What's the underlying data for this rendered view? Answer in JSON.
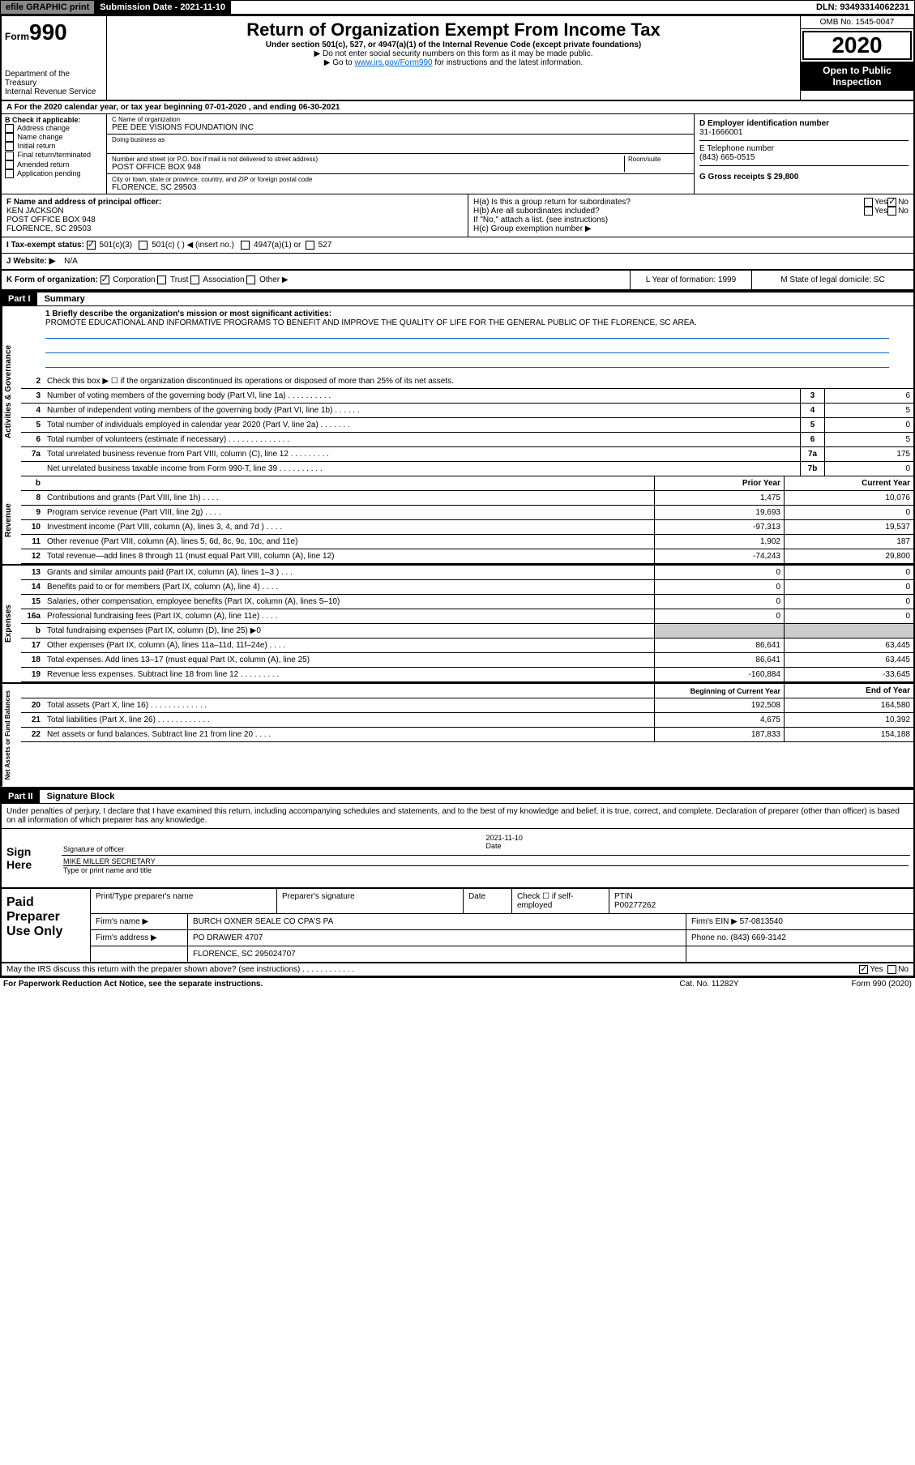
{
  "topbar": {
    "efile": "efile GRAPHIC print",
    "submission_label": "Submission Date - 2021-11-10",
    "dln": "DLN: 93493314062231"
  },
  "header": {
    "form_label": "Form",
    "form_number": "990",
    "title": "Return of Organization Exempt From Income Tax",
    "subtitle": "Under section 501(c), 527, or 4947(a)(1) of the Internal Revenue Code (except private foundations)",
    "note1": "▶ Do not enter social security numbers on this form as it may be made public.",
    "note2_pre": "▶ Go to ",
    "note2_link": "www.irs.gov/Form990",
    "note2_post": " for instructions and the latest information.",
    "dept1": "Department of the Treasury",
    "dept2": "Internal Revenue Service",
    "omb": "OMB No. 1545-0047",
    "year": "2020",
    "open_public": "Open to Public Inspection"
  },
  "period": "A For the 2020 calendar year, or tax year beginning 07-01-2020    , and ending 06-30-2021",
  "section_b": {
    "label": "B Check if applicable:",
    "opts": [
      "Address change",
      "Name change",
      "Initial return",
      "Final return/terminated",
      "Amended return",
      "Application pending"
    ]
  },
  "section_c": {
    "name_label": "C Name of organization",
    "name": "PEE DEE VISIONS FOUNDATION INC",
    "dba_label": "Doing business as",
    "addr_label": "Number and street (or P.O. box if mail is not delivered to street address)",
    "room_label": "Room/suite",
    "addr": "POST OFFICE BOX 948",
    "city_label": "City or town, state or province, country, and ZIP or foreign postal code",
    "city": "FLORENCE, SC  29503"
  },
  "section_d": {
    "ein_label": "D Employer identification number",
    "ein": "31-1666001",
    "phone_label": "E Telephone number",
    "phone": "(843) 665-0515",
    "gross_label": "G Gross receipts $ 29,800"
  },
  "section_f": {
    "label": "F  Name and address of principal officer:",
    "name": "KEN JACKSON",
    "addr1": "POST OFFICE BOX 948",
    "addr2": "FLORENCE, SC  29503"
  },
  "section_h": {
    "ha": "H(a)  Is this a group return for subordinates?",
    "hb": "H(b)  Are all subordinates included?",
    "hb_note": "If \"No,\" attach a list. (see instructions)",
    "hc": "H(c)  Group exemption number ▶",
    "yes": "Yes",
    "no": "No"
  },
  "tax_status": {
    "label": "I  Tax-exempt status:",
    "opt1": "501(c)(3)",
    "opt2": "501(c) (   ) ◀ (insert no.)",
    "opt3": "4947(a)(1) or",
    "opt4": "527"
  },
  "website": {
    "label": "J  Website: ▶",
    "value": "N/A"
  },
  "form_org": {
    "k_label": "K Form of organization:",
    "k_opts": [
      "Corporation",
      "Trust",
      "Association",
      "Other ▶"
    ],
    "l_label": "L Year of formation: 1999",
    "m_label": "M State of legal domicile: SC"
  },
  "part1": {
    "header": "Part I",
    "title": "Summary"
  },
  "mission": {
    "label": "1  Briefly describe the organization's mission or most significant activities:",
    "text": "PROMOTE EDUCATIONAL AND INFORMATIVE PROGRAMS TO BENEFIT AND IMPROVE THE QUALITY OF LIFE FOR THE GENERAL PUBLIC OF THE FLORENCE, SC AREA."
  },
  "gov_lines": [
    {
      "n": "2",
      "d": "Check this box ▶ ☐  if the organization discontinued its operations or disposed of more than 25% of its net assets.",
      "b": "",
      "v": ""
    },
    {
      "n": "3",
      "d": "Number of voting members of the governing body (Part VI, line 1a)   .    .    .    .    .    .    .    .    .    .",
      "b": "3",
      "v": "6"
    },
    {
      "n": "4",
      "d": "Number of independent voting members of the governing body (Part VI, line 1b)   .    .    .    .    .    .",
      "b": "4",
      "v": "5"
    },
    {
      "n": "5",
      "d": "Total number of individuals employed in calendar year 2020 (Part V, line 2a)   .    .    .    .    .    .    .",
      "b": "5",
      "v": "0"
    },
    {
      "n": "6",
      "d": "Total number of volunteers (estimate if necessary)    .    .    .    .    .    .    .    .    .    .    .    .    .    .",
      "b": "6",
      "v": "5"
    },
    {
      "n": "7a",
      "d": "Total unrelated business revenue from Part VIII, column (C), line 12   .    .    .    .    .    .    .    .    .",
      "b": "7a",
      "v": "175"
    },
    {
      "n": "",
      "d": "Net unrelated business taxable income from Form 990-T, line 39    .    .    .    .    .    .    .    .    .    .",
      "b": "7b",
      "v": "0"
    }
  ],
  "rev_header": {
    "b": "b",
    "py": "Prior Year",
    "cy": "Current Year"
  },
  "rev_lines": [
    {
      "n": "8",
      "d": "Contributions and grants (Part VIII, line 1h)    .    .    .    .",
      "py": "1,475",
      "cy": "10,076"
    },
    {
      "n": "9",
      "d": "Program service revenue (Part VIII, line 2g)    .    .    .    .",
      "py": "19,693",
      "cy": "0"
    },
    {
      "n": "10",
      "d": "Investment income (Part VIII, column (A), lines 3, 4, and 7d )    .    .    .    .",
      "py": "-97,313",
      "cy": "19,537"
    },
    {
      "n": "11",
      "d": "Other revenue (Part VIII, column (A), lines 5, 6d, 8c, 9c, 10c, and 11e)",
      "py": "1,902",
      "cy": "187"
    },
    {
      "n": "12",
      "d": "Total revenue—add lines 8 through 11 (must equal Part VIII, column (A), line 12)",
      "py": "-74,243",
      "cy": "29,800"
    }
  ],
  "exp_lines": [
    {
      "n": "13",
      "d": "Grants and similar amounts paid (Part IX, column (A), lines 1–3 )   .    .    .",
      "py": "0",
      "cy": "0"
    },
    {
      "n": "14",
      "d": "Benefits paid to or for members (Part IX, column (A), line 4)   .    .    .    .",
      "py": "0",
      "cy": "0"
    },
    {
      "n": "15",
      "d": "Salaries, other compensation, employee benefits (Part IX, column (A), lines 5–10)",
      "py": "0",
      "cy": "0"
    },
    {
      "n": "16a",
      "d": "Professional fundraising fees (Part IX, column (A), line 11e)    .    .    .    .",
      "py": "0",
      "cy": "0"
    },
    {
      "n": "b",
      "d": "Total fundraising expenses (Part IX, column (D), line 25) ▶0",
      "py": "",
      "cy": "",
      "gray": true
    },
    {
      "n": "17",
      "d": "Other expenses (Part IX, column (A), lines 11a–11d, 11f–24e)    .    .    .    .",
      "py": "86,641",
      "cy": "63,445"
    },
    {
      "n": "18",
      "d": "Total expenses. Add lines 13–17 (must equal Part IX, column (A), line 25)",
      "py": "86,641",
      "cy": "63,445"
    },
    {
      "n": "19",
      "d": "Revenue less expenses. Subtract line 18 from line 12   .    .    .    .    .    .    .    .    .",
      "py": "-160,884",
      "cy": "-33,645"
    }
  ],
  "net_header": {
    "py": "Beginning of Current Year",
    "cy": "End of Year"
  },
  "net_lines": [
    {
      "n": "20",
      "d": "Total assets (Part X, line 16)   .    .    .    .    .    .    .    .    .    .    .    .    .",
      "py": "192,508",
      "cy": "164,580"
    },
    {
      "n": "21",
      "d": "Total liabilities (Part X, line 26)   .    .    .    .    .    .    .    .    .    .    .    .",
      "py": "4,675",
      "cy": "10,392"
    },
    {
      "n": "22",
      "d": "Net assets or fund balances. Subtract line 21 from line 20    .    .    .    .",
      "py": "187,833",
      "cy": "154,188"
    }
  ],
  "side_labels": {
    "gov": "Activities & Governance",
    "rev": "Revenue",
    "exp": "Expenses",
    "net": "Net Assets or Fund Balances"
  },
  "part2": {
    "header": "Part II",
    "title": "Signature Block"
  },
  "sig_text": "Under penalties of perjury, I declare that I have examined this return, including accompanying schedules and statements, and to the best of my knowledge and belief, it is true, correct, and complete. Declaration of preparer (other than officer) is based on all information of which preparer has any knowledge.",
  "sign": {
    "here": "Sign Here",
    "sig_officer": "Signature of officer",
    "date": "Date",
    "date_val": "2021-11-10",
    "name": "MIKE MILLER  SECRETARY",
    "name_label": "Type or print name and title"
  },
  "paid": {
    "title": "Paid Preparer Use Only",
    "r1": {
      "c1": "Print/Type preparer's name",
      "c2": "Preparer's signature",
      "c3": "Date",
      "c4": "Check ☐ if self-employed",
      "c5_l": "PTIN",
      "c5_v": "P00277262"
    },
    "r2": {
      "c1": "Firm's name      ▶",
      "c1v": "BURCH OXNER SEALE CO CPA'S PA",
      "c2": "Firm's EIN ▶ 57-0813540"
    },
    "r3": {
      "c1": "Firm's address ▶",
      "c1v": "PO DRAWER 4707",
      "c2": "Phone no. (843) 669-3142"
    },
    "r4": {
      "c1": "",
      "c1v": "FLORENCE, SC  295024707",
      "c2": ""
    }
  },
  "discuss": {
    "text": "May the IRS discuss this return with the preparer shown above? (see instructions)    .    .    .    .    .    .    .    .    .    .    .    .",
    "yes": "Yes",
    "no": "No"
  },
  "footer": {
    "left": "For Paperwork Reduction Act Notice, see the separate instructions.",
    "center": "Cat. No. 11282Y",
    "right": "Form 990 (2020)"
  }
}
